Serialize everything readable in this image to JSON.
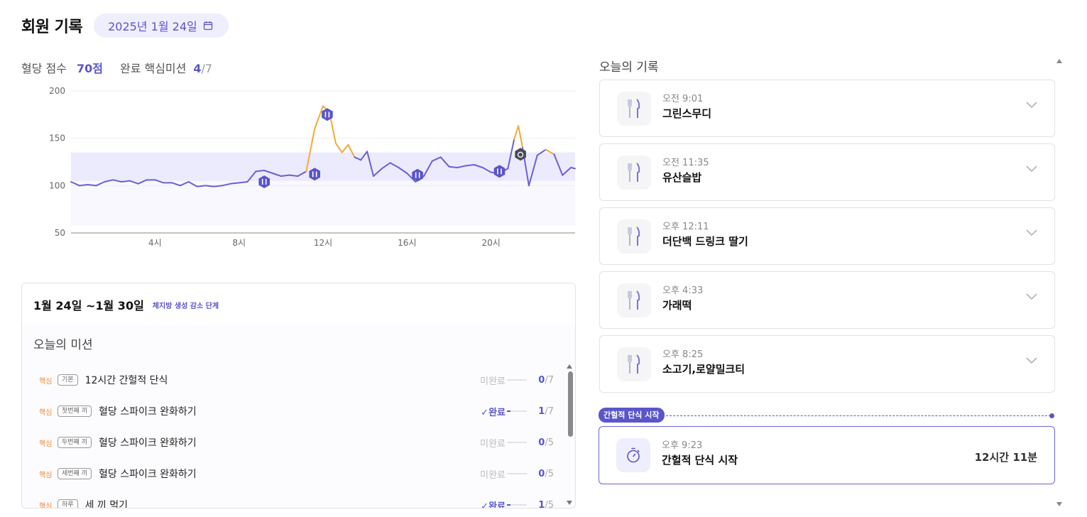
{
  "header": {
    "title": "회원 기록",
    "date": "2025년 1월 24일",
    "date_icon": "calendar-icon"
  },
  "stats": {
    "score_label": "혈당 점수",
    "score_value": "70점",
    "mission_label": "완료 핵심미션",
    "mission_done": "4",
    "mission_total": "/7"
  },
  "colors": {
    "accent": "#5a55c9",
    "line": "#6b5fd8",
    "spike": "#f3a93a",
    "target_band": "#eceafd",
    "core_tag": "#f08a3c"
  },
  "chart_data": {
    "type": "line",
    "x_ticks": [
      "4시",
      "8시",
      "12시",
      "16시",
      "20시"
    ],
    "y_ticks": [
      "200",
      "150",
      "100",
      "50"
    ],
    "ylim": [
      50,
      200
    ],
    "xlim": [
      0,
      24
    ],
    "target_range": [
      105,
      135
    ],
    "spike_threshold": 135,
    "x": [
      0,
      0.4,
      0.8,
      1.2,
      1.6,
      2.0,
      2.4,
      2.8,
      3.2,
      3.6,
      4.0,
      4.4,
      4.8,
      5.2,
      5.6,
      6.0,
      6.4,
      6.8,
      7.2,
      7.6,
      8.0,
      8.4,
      8.8,
      9.2,
      9.6,
      10.0,
      10.4,
      10.8,
      11.2,
      11.6,
      12.0,
      12.3,
      12.6,
      12.9,
      13.2,
      13.5,
      13.8,
      14.1,
      14.4,
      14.8,
      15.2,
      15.6,
      16.0,
      16.4,
      16.8,
      17.2,
      17.6,
      18.0,
      18.4,
      18.8,
      19.2,
      19.6,
      20.0,
      20.4,
      20.8,
      21.1,
      21.3,
      21.5,
      21.8,
      22.2,
      22.6,
      23.0,
      23.4,
      23.8,
      24.0
    ],
    "y": [
      104,
      100,
      101,
      100,
      104,
      106,
      104,
      105,
      102,
      106,
      106,
      103,
      103,
      100,
      104,
      99,
      100,
      99,
      100,
      102,
      103,
      104,
      115,
      116,
      113,
      110,
      111,
      110,
      115,
      160,
      184,
      178,
      145,
      135,
      143,
      130,
      127,
      136,
      110,
      118,
      124,
      119,
      113,
      104,
      110,
      126,
      130,
      120,
      119,
      121,
      122,
      119,
      114,
      113,
      118,
      149,
      163,
      140,
      100,
      132,
      138,
      133,
      111,
      119,
      118
    ],
    "markers": [
      {
        "x": 9.2,
        "y": 104,
        "type": "meal"
      },
      {
        "x": 11.6,
        "y": 112,
        "type": "meal"
      },
      {
        "x": 12.2,
        "y": 175,
        "type": "meal"
      },
      {
        "x": 16.5,
        "y": 111,
        "type": "meal"
      },
      {
        "x": 20.4,
        "y": 115,
        "type": "meal"
      },
      {
        "x": 21.4,
        "y": 133,
        "type": "fasting"
      }
    ]
  },
  "week": {
    "range": "1월 24일 ~1월 30일",
    "phase": "체지방 생성 감소 단계",
    "missions_title": "오늘의 미션",
    "missions": [
      {
        "core": "핵심",
        "tag": "기본",
        "name": "12시간 간헐적 단식",
        "status": "미완료",
        "done": false,
        "count": "0",
        "total": "/7"
      },
      {
        "core": "핵심",
        "tag": "첫번째 끼",
        "name": "혈당 스파이크 완화하기",
        "status": "✓완료",
        "done": true,
        "count": "1",
        "total": "/7"
      },
      {
        "core": "핵심",
        "tag": "두번째 끼",
        "name": "혈당 스파이크 완화하기",
        "status": "미완료",
        "done": false,
        "count": "0",
        "total": "/5"
      },
      {
        "core": "핵심",
        "tag": "세번째 끼",
        "name": "혈당 스파이크 완화하기",
        "status": "미완료",
        "done": false,
        "count": "0",
        "total": "/5"
      },
      {
        "core": "핵심",
        "tag": "하루",
        "name": "세 끼 먹기",
        "status": "✓완료",
        "done": true,
        "count": "1",
        "total": "/5"
      }
    ]
  },
  "records": {
    "title": "오늘의 기록",
    "items": [
      {
        "time": "오전 9:01",
        "name": "그린스무디",
        "icon": "utensils-icon"
      },
      {
        "time": "오전 11:35",
        "name": "유산슬밥",
        "icon": "utensils-icon"
      },
      {
        "time": "오후 12:11",
        "name": "더단백 드링크 딸기",
        "icon": "utensils-icon"
      },
      {
        "time": "오후 4:33",
        "name": "가래떡",
        "icon": "utensils-icon"
      },
      {
        "time": "오후 8:25",
        "name": "소고기,로얄밀크티",
        "icon": "utensils-icon"
      }
    ],
    "fasting_badge": "간헐적 단식 시작",
    "fasting": {
      "time": "오후 9:23",
      "name": "간헐적 단식 시작",
      "duration": "12시간 11분",
      "icon": "stopwatch-icon"
    }
  }
}
